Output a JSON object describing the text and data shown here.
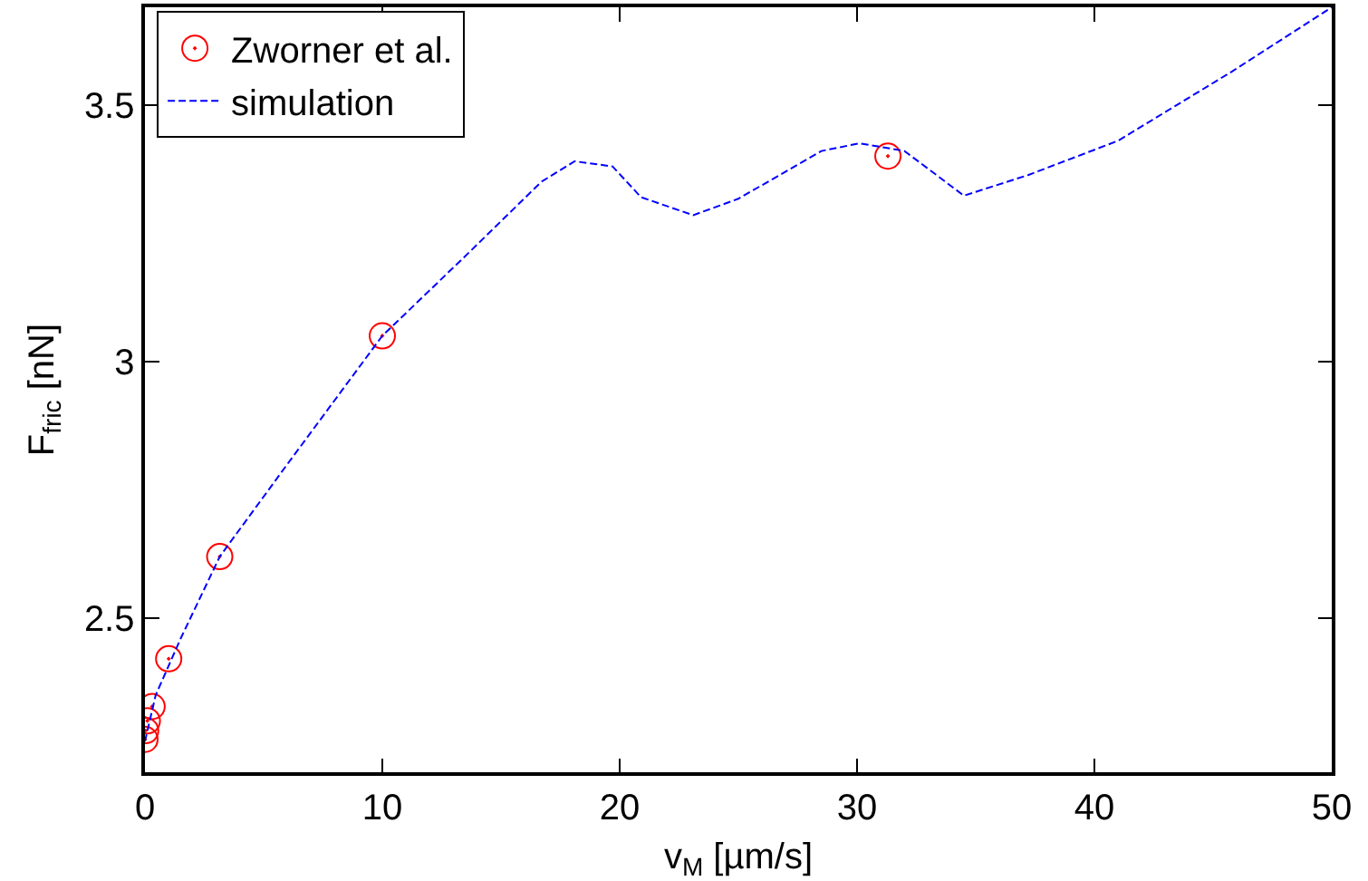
{
  "chart_data": {
    "type": "scatter",
    "xlabel": "v$_{M}$ [µm/s]",
    "ylabel": "F$_{fric}$ [nN]",
    "xlim": [
      0,
      50
    ],
    "ylim": [
      2.2,
      3.69
    ],
    "xticks": [
      0,
      10,
      20,
      30,
      40,
      50
    ],
    "yticks": [
      2.5,
      3,
      3.5
    ],
    "grid": false,
    "legend": "top left",
    "series": [
      {
        "name": "Zworner et al.",
        "marker": "circle",
        "color": "#ff0000",
        "x": [
          0,
          0.03,
          0.1,
          0.3,
          1.0,
          3.15,
          10.0,
          31.3
        ],
        "values": [
          2.264,
          2.281,
          2.3,
          2.328,
          2.421,
          2.62,
          3.05,
          3.4
        ]
      },
      {
        "name": "simulation",
        "type": "line",
        "marker": "none",
        "line_style": "dashed",
        "color": "#0000ff",
        "x": [
          0,
          0.45,
          1.5,
          3.15,
          6.0,
          10,
          13.6,
          16.7,
          18.1,
          19.7,
          20.9,
          23.1,
          25,
          28.5,
          30.1,
          32.0,
          34.5,
          37.2,
          41.0,
          45.8,
          50
        ],
        "values": [
          2.26,
          2.35,
          2.46,
          2.62,
          2.8,
          3.05,
          3.21,
          3.35,
          3.39,
          3.38,
          3.32,
          3.285,
          3.317,
          3.41,
          3.425,
          3.41,
          3.323,
          3.363,
          3.43,
          3.565,
          3.69
        ]
      }
    ]
  }
}
